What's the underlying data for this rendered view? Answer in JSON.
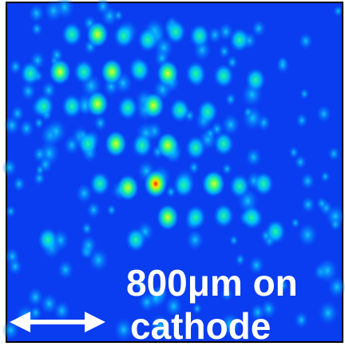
{
  "annotation": {
    "lines": [
      "800μm on",
      "cathode"
    ]
  }
}
